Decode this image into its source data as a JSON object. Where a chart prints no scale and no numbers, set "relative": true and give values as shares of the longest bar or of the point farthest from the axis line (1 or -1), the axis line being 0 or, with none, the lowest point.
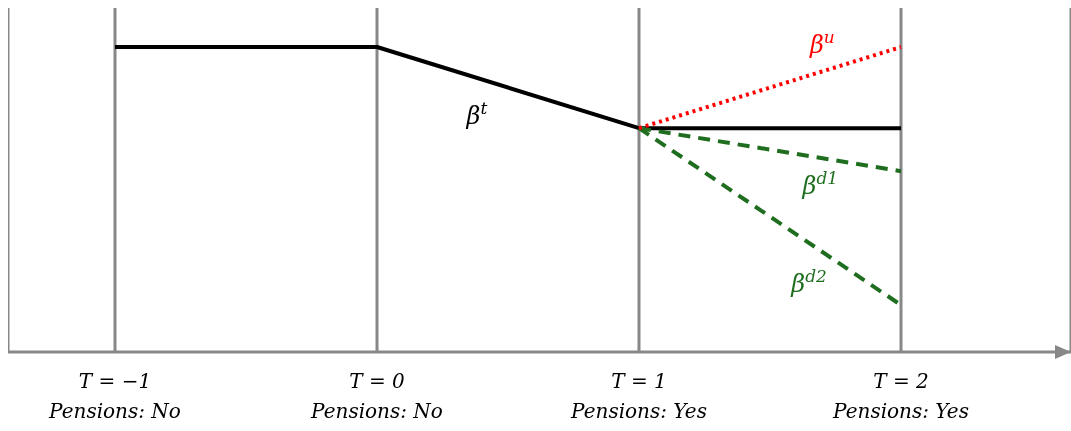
{
  "chart_data": {
    "type": "line",
    "relative": true,
    "categories": [
      "T = −1\nPensions: No",
      "T = 0\nPensions: No",
      "T = 1\nPensions: Yes",
      "T = 2\nPensions: Yes"
    ],
    "series": [
      {
        "name": "β$^{t}$",
        "color": "#000000",
        "line_style": "solid",
        "values": [
          1,
          1,
          0.734,
          0.734
        ]
      },
      {
        "name": "β$^{u}$",
        "color": "#ff0000",
        "line_style": "dotted",
        "values": [
          null,
          null,
          0.734,
          1
        ]
      },
      {
        "name": "β$^{d1}$",
        "color": "#1f6e1f",
        "line_style": "dashed",
        "values": [
          null,
          null,
          0.734,
          0.593
        ]
      },
      {
        "name": "β$^{d2}$",
        "color": "#1f6e1f",
        "line_style": "dashed",
        "values": [
          null,
          null,
          0.734,
          0.154
        ]
      }
    ],
    "grid": "x",
    "legend": false,
    "marker": "none"
  }
}
